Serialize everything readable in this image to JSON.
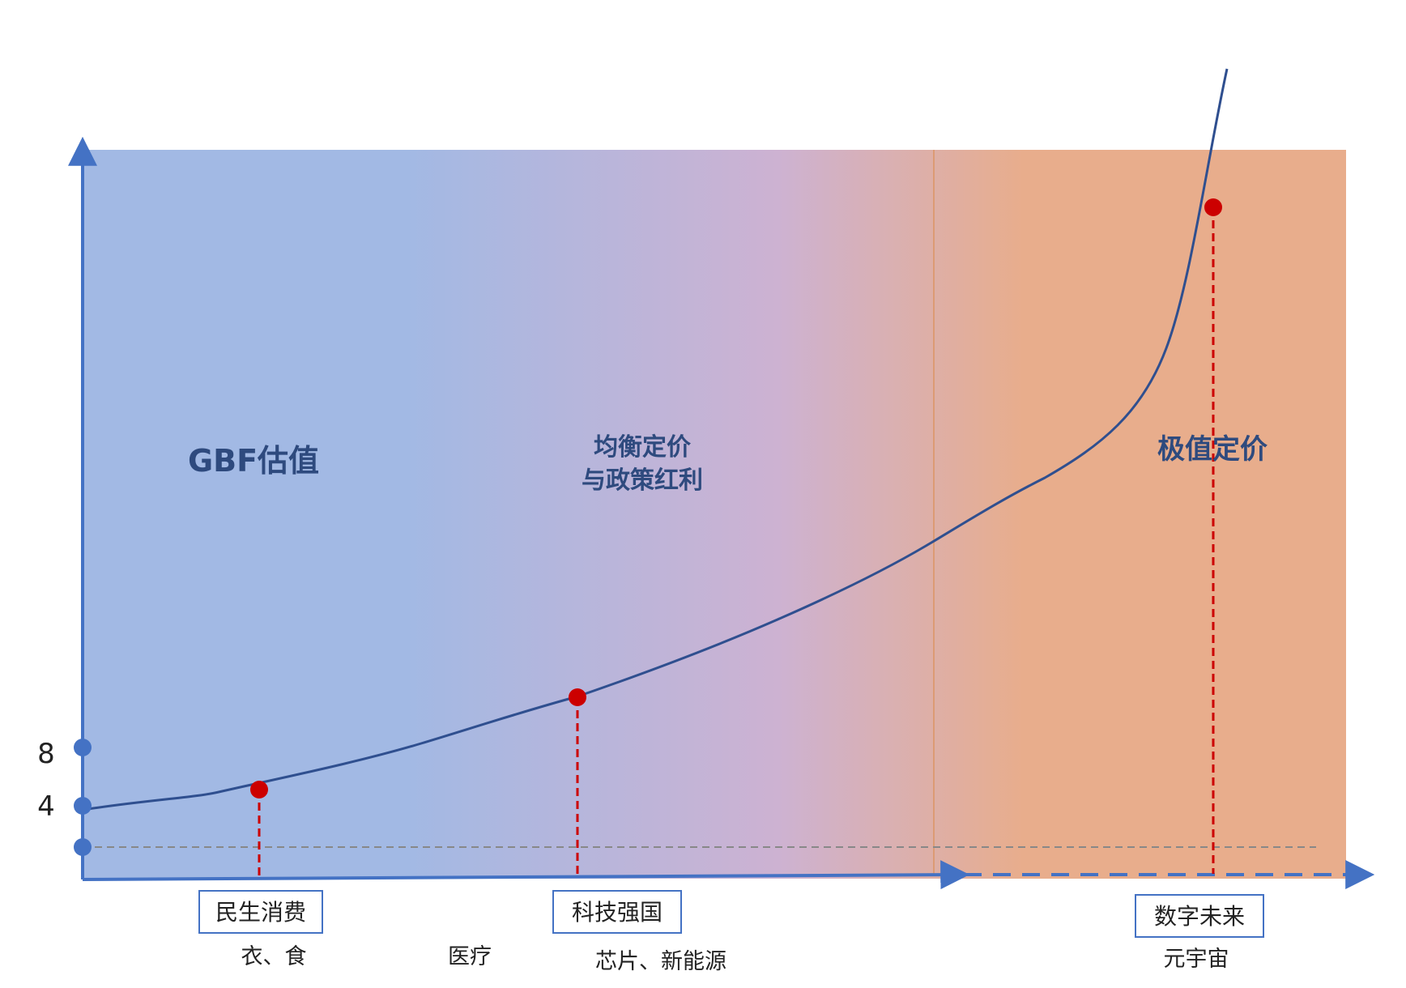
{
  "zones": {
    "left": "GBF估值",
    "middle_line1": "均衡定价",
    "middle_line2": "与政策红利",
    "right": "极值定价"
  },
  "y_ticks": [
    "8",
    "4"
  ],
  "markers": [
    {
      "box": "民生消费",
      "caption": "衣、食"
    },
    {
      "box": "科技强国",
      "caption": "芯片、新能源"
    },
    {
      "box": "数字未来",
      "caption": "元宇宙"
    }
  ],
  "free_caption": "医疗",
  "colors": {
    "left_zone": "#a2b9e4",
    "right_zone": "#e8ad8c",
    "axis": "#4472c4",
    "curve": "#2f4f8f",
    "marker": "#cc0000",
    "baseline": "#888888"
  }
}
